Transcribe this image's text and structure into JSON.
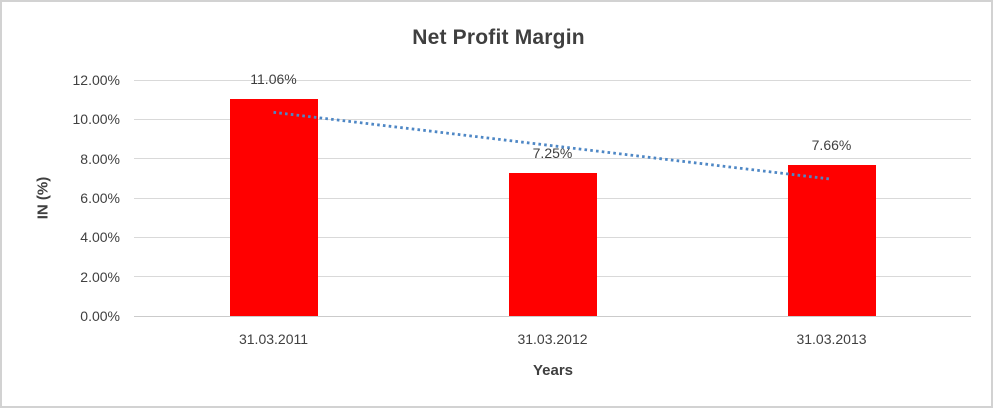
{
  "chart_data": {
    "type": "bar",
    "title": "Net Profit Margin",
    "xlabel": "Years",
    "ylabel": "IN (%)",
    "categories": [
      "31.03.2011",
      "31.03.2012",
      "31.03.2013"
    ],
    "values": [
      11.06,
      7.25,
      7.66
    ],
    "value_labels": [
      "11.06%",
      "7.25%",
      "7.66%"
    ],
    "ylim": [
      0,
      12
    ],
    "ytick_step": 2,
    "ytick_labels": [
      "0.00%",
      "2.00%",
      "4.00%",
      "6.00%",
      "8.00%",
      "10.00%",
      "12.00%"
    ],
    "grid": true,
    "legend": "none",
    "bar_color": "#ff0000",
    "gridline_color": "#d9d9d9",
    "trendline": {
      "type": "linear",
      "style": "dotted",
      "color": "#4e87c5"
    }
  }
}
